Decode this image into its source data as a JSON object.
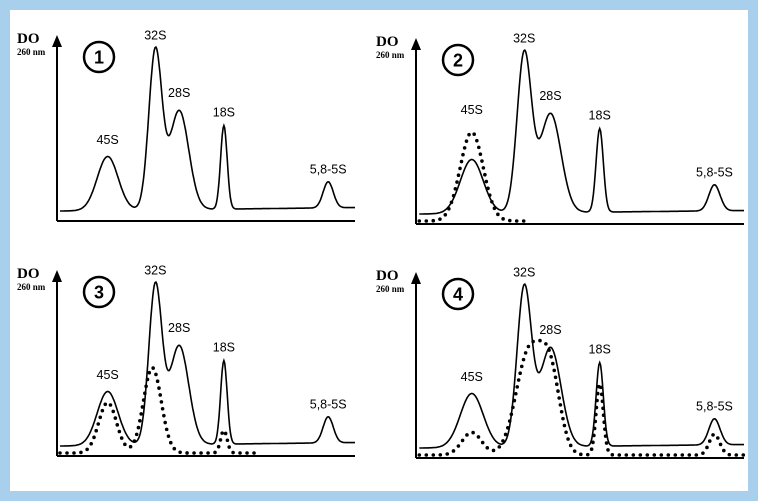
{
  "colors": {
    "border": "#a8d0ec",
    "background": "#ffffff",
    "ink": "#000000"
  },
  "chart_data": [
    {
      "type": "line",
      "panel": "1",
      "ylabel": "DO",
      "yunit": "260 nm",
      "peak_labels": [
        {
          "text": "45S",
          "x": 0.17,
          "y": 0.39
        },
        {
          "text": "32S",
          "x": 0.33,
          "y": 0.99
        },
        {
          "text": "28S",
          "x": 0.41,
          "y": 0.66
        },
        {
          "text": "18S",
          "x": 0.56,
          "y": 0.55
        },
        {
          "text": "5,8-5S",
          "x": 0.91,
          "y": 0.22
        }
      ],
      "series": [
        {
          "style": "solid",
          "peaks": [
            {
              "x": 0.17,
              "h": 0.31,
              "w": 0.035
            },
            {
              "x": 0.33,
              "h": 0.91,
              "w": 0.022
            },
            {
              "x": 0.41,
              "h": 0.57,
              "w": 0.032
            },
            {
              "x": 0.56,
              "h": 0.48,
              "w": 0.011
            },
            {
              "x": 0.91,
              "h": 0.15,
              "w": 0.017
            }
          ]
        }
      ]
    },
    {
      "type": "line",
      "panel": "2",
      "ylabel": "DO",
      "yunit": "260 nm",
      "peak_labels": [
        {
          "text": "45S",
          "x": 0.17,
          "y": 0.58
        },
        {
          "text": "32S",
          "x": 0.33,
          "y": 0.99
        },
        {
          "text": "28S",
          "x": 0.41,
          "y": 0.66
        },
        {
          "text": "18S",
          "x": 0.56,
          "y": 0.55
        },
        {
          "text": "5,8-5S",
          "x": 0.91,
          "y": 0.22
        }
      ],
      "series": [
        {
          "style": "solid",
          "peaks": [
            {
              "x": 0.17,
              "h": 0.31,
              "w": 0.035
            },
            {
              "x": 0.33,
              "h": 0.91,
              "w": 0.022
            },
            {
              "x": 0.41,
              "h": 0.57,
              "w": 0.032
            },
            {
              "x": 0.56,
              "h": 0.48,
              "w": 0.011
            },
            {
              "x": 0.91,
              "h": 0.15,
              "w": 0.017
            }
          ]
        },
        {
          "style": "dotted",
          "x_end": 0.33,
          "peaks": [
            {
              "x": 0.17,
              "h": 0.51,
              "w": 0.035
            }
          ]
        }
      ]
    },
    {
      "type": "line",
      "panel": "3",
      "ylabel": "DO",
      "yunit": "260 nm",
      "peak_labels": [
        {
          "text": "45S",
          "x": 0.17,
          "y": 0.39
        },
        {
          "text": "32S",
          "x": 0.33,
          "y": 0.99
        },
        {
          "text": "28S",
          "x": 0.41,
          "y": 0.66
        },
        {
          "text": "18S",
          "x": 0.56,
          "y": 0.55
        },
        {
          "text": "5,8-5S",
          "x": 0.91,
          "y": 0.22
        }
      ],
      "series": [
        {
          "style": "solid",
          "peaks": [
            {
              "x": 0.17,
              "h": 0.31,
              "w": 0.035
            },
            {
              "x": 0.33,
              "h": 0.91,
              "w": 0.022
            },
            {
              "x": 0.41,
              "h": 0.57,
              "w": 0.032
            },
            {
              "x": 0.56,
              "h": 0.48,
              "w": 0.011
            },
            {
              "x": 0.91,
              "h": 0.15,
              "w": 0.017
            }
          ]
        },
        {
          "style": "dotted",
          "x_end": 0.67,
          "peaks": [
            {
              "x": 0.17,
              "h": 0.29,
              "w": 0.03
            },
            {
              "x": 0.32,
              "h": 0.49,
              "w": 0.03
            },
            {
              "x": 0.56,
              "h": 0.13,
              "w": 0.011
            }
          ]
        }
      ]
    },
    {
      "type": "line",
      "panel": "4",
      "ylabel": "DO",
      "yunit": "260 nm",
      "peak_labels": [
        {
          "text": "45S",
          "x": 0.17,
          "y": 0.39
        },
        {
          "text": "32S",
          "x": 0.33,
          "y": 0.99
        },
        {
          "text": "28S",
          "x": 0.41,
          "y": 0.66
        },
        {
          "text": "18S",
          "x": 0.56,
          "y": 0.55
        },
        {
          "text": "5,8-5S",
          "x": 0.91,
          "y": 0.22
        }
      ],
      "series": [
        {
          "style": "solid",
          "peaks": [
            {
              "x": 0.17,
              "h": 0.31,
              "w": 0.035
            },
            {
              "x": 0.33,
              "h": 0.91,
              "w": 0.022
            },
            {
              "x": 0.41,
              "h": 0.57,
              "w": 0.032
            },
            {
              "x": 0.56,
              "h": 0.48,
              "w": 0.011
            },
            {
              "x": 0.91,
              "h": 0.15,
              "w": 0.017
            }
          ]
        },
        {
          "style": "dotted",
          "x_end": 1.0,
          "peaks": [
            {
              "x": 0.17,
              "h": 0.13,
              "w": 0.03
            },
            {
              "x": 0.345,
              "h": 0.59,
              "w": 0.04
            },
            {
              "x": 0.41,
              "h": 0.42,
              "w": 0.03
            },
            {
              "x": 0.56,
              "h": 0.41,
              "w": 0.011
            },
            {
              "x": 0.91,
              "h": 0.12,
              "w": 0.016
            }
          ]
        }
      ]
    }
  ]
}
